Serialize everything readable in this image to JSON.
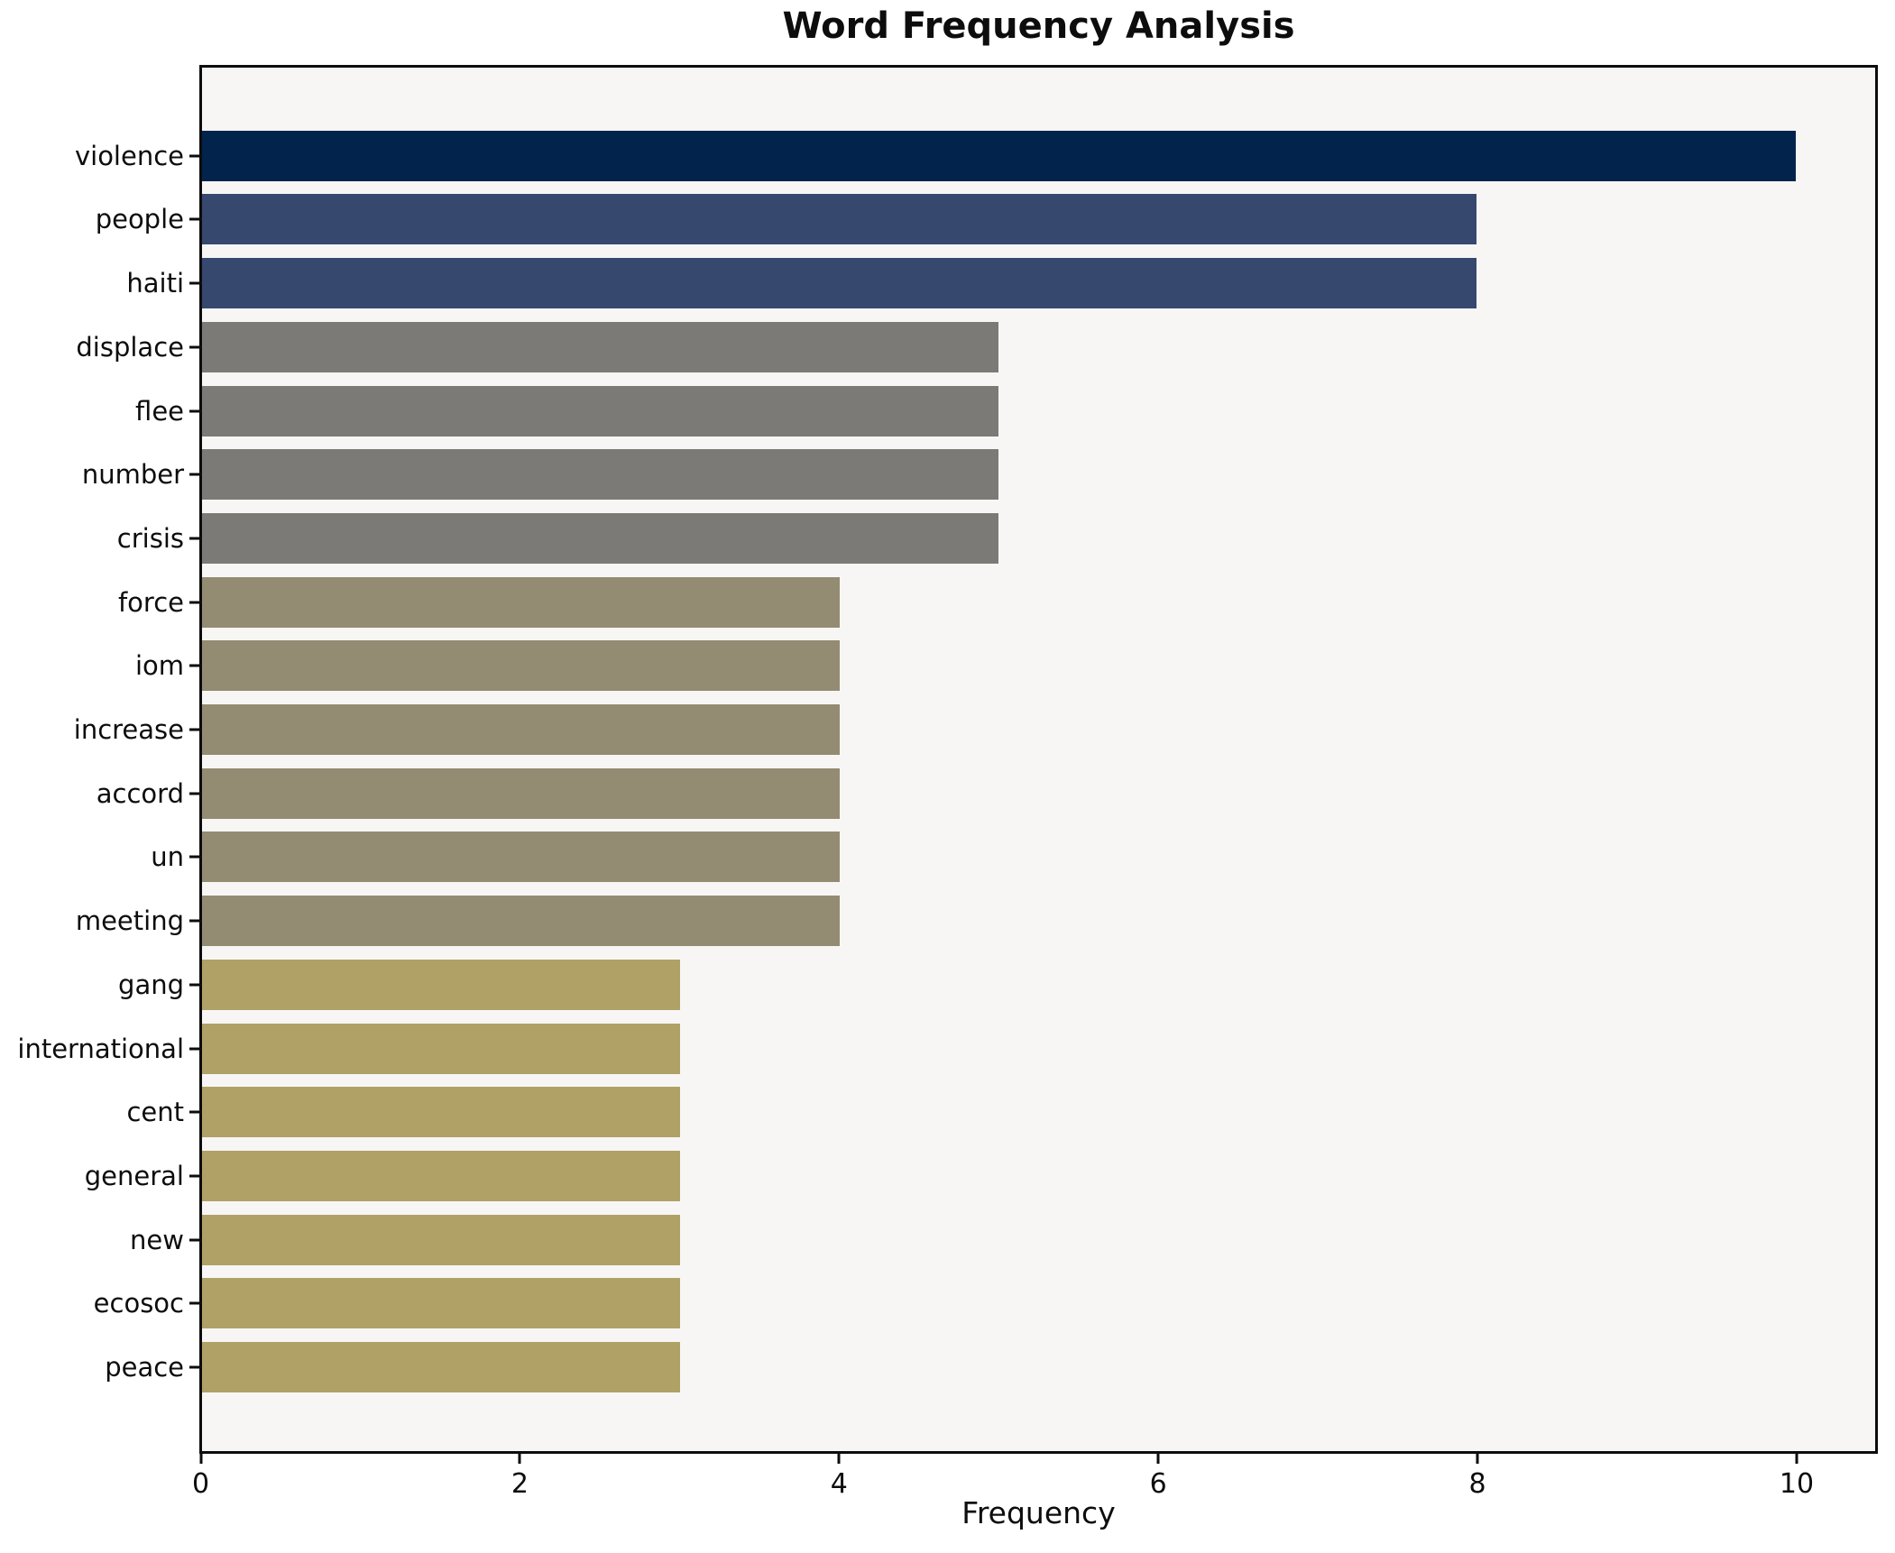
{
  "chart_data": {
    "type": "bar",
    "orientation": "horizontal",
    "title": "Word Frequency Analysis",
    "xlabel": "Frequency",
    "ylabel": "",
    "categories": [
      "violence",
      "people",
      "haiti",
      "displace",
      "flee",
      "number",
      "crisis",
      "force",
      "iom",
      "increase",
      "accord",
      "un",
      "meeting",
      "gang",
      "international",
      "cent",
      "general",
      "new",
      "ecosoc",
      "peace"
    ],
    "values": [
      10,
      8,
      8,
      5,
      5,
      5,
      5,
      4,
      4,
      4,
      4,
      4,
      4,
      3,
      3,
      3,
      3,
      3,
      3,
      3
    ],
    "bar_colors": [
      "#02234c",
      "#36486e",
      "#36486e",
      "#7b7a76",
      "#7b7a76",
      "#7b7a76",
      "#7b7a76",
      "#938b72",
      "#938b72",
      "#938b72",
      "#938b72",
      "#938b72",
      "#938b72",
      "#b0a167",
      "#b0a167",
      "#b0a167",
      "#b0a167",
      "#b0a167",
      "#b0a167",
      "#b0a167"
    ],
    "xlim": [
      0,
      10.5
    ],
    "xticks": [
      0,
      2,
      4,
      6,
      8,
      10
    ],
    "grid": false,
    "legend": false,
    "colors": {
      "figure_bg": "#ffffff",
      "axes_bg": "#f7f6f4",
      "spine": "#0d0d0d",
      "text": "#0d0d0d"
    }
  }
}
